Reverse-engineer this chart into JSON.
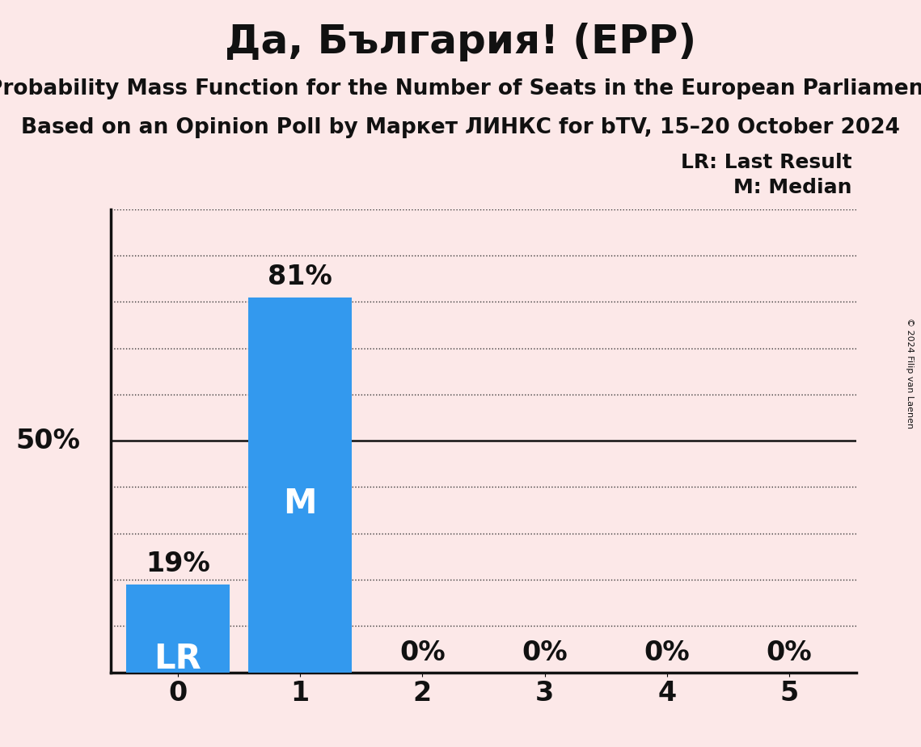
{
  "title": "Да, България! (EPP)",
  "subtitle1": "Probability Mass Function for the Number of Seats in the European Parliament",
  "subtitle2": "Based on an Opinion Poll by Маркет ЛИНКС for bTV, 15–20 October 2024",
  "copyright": "© 2024 Filip van Laenen",
  "categories": [
    0,
    1,
    2,
    3,
    4,
    5
  ],
  "values": [
    0.19,
    0.81,
    0.0,
    0.0,
    0.0,
    0.0
  ],
  "bar_color": "#3399ee",
  "background_color": "#fce8e8",
  "title_fontsize": 36,
  "subtitle_fontsize": 19,
  "bar_label_fontsize": 24,
  "axis_tick_fontsize": 24,
  "legend_fontsize": 18,
  "inner_label_fontsize": 30,
  "bar_labels": [
    "19%",
    "81%",
    "0%",
    "0%",
    "0%",
    "0%"
  ],
  "bar_inner_labels": [
    {
      "bar": 0,
      "text": "LR"
    },
    {
      "bar": 1,
      "text": "M"
    }
  ],
  "ylim": [
    0,
    1.0
  ],
  "yticks": [
    0.0,
    0.1,
    0.2,
    0.3,
    0.4,
    0.5,
    0.6,
    0.7,
    0.8,
    0.9,
    1.0
  ],
  "dotted_line_color": "#333333",
  "solid_line_color": "#111111",
  "text_color": "#111111",
  "lr_label": "LR: Last Result",
  "m_label": "M: Median"
}
